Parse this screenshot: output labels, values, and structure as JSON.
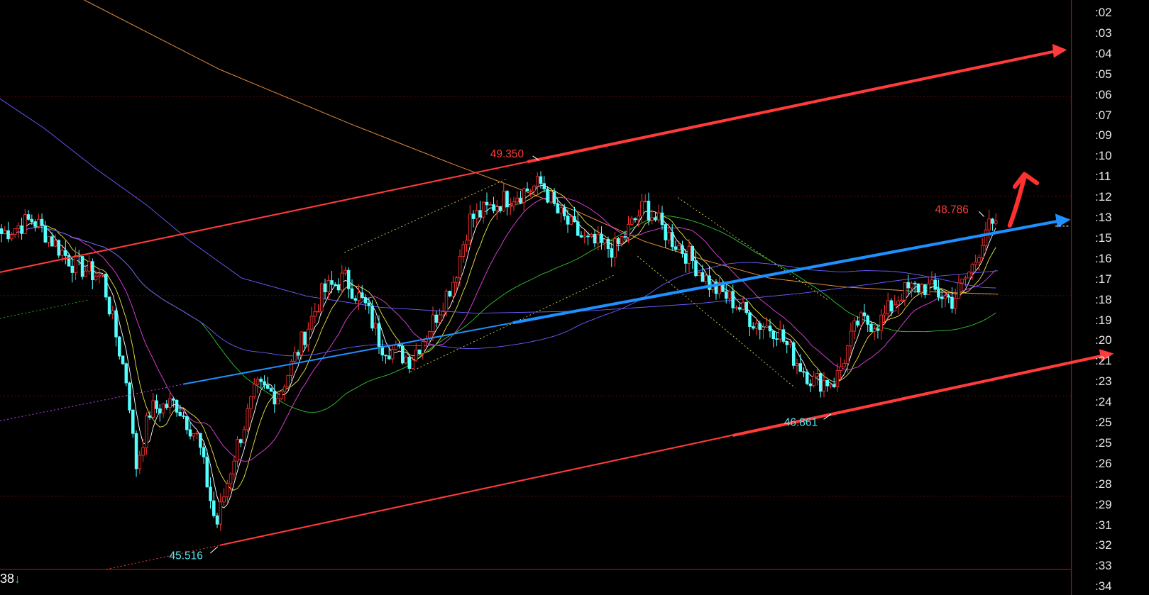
{
  "chart_data": {
    "type": "candlestick",
    "title": "",
    "xlabel": "",
    "ylabel": "",
    "ylim": [
      45.2,
      50.9
    ],
    "grid": true,
    "close_path": [
      [
        0,
        48.65
      ],
      [
        45,
        48.8
      ],
      [
        100,
        48.35
      ],
      [
        140,
        48.21
      ],
      [
        175,
        47.1
      ],
      [
        185,
        46.29
      ],
      [
        205,
        46.88
      ],
      [
        240,
        46.95
      ],
      [
        270,
        46.59
      ],
      [
        295,
        45.7
      ],
      [
        320,
        46.44
      ],
      [
        350,
        47.1
      ],
      [
        380,
        47.03
      ],
      [
        410,
        47.54
      ],
      [
        440,
        48.06
      ],
      [
        470,
        48.21
      ],
      [
        500,
        47.91
      ],
      [
        520,
        47.54
      ],
      [
        560,
        47.39
      ],
      [
        590,
        47.76
      ],
      [
        620,
        48.21
      ],
      [
        640,
        48.79
      ],
      [
        690,
        49.01
      ],
      [
        740,
        49.16
      ],
      [
        760,
        48.87
      ],
      [
        800,
        48.57
      ],
      [
        840,
        48.5
      ],
      [
        880,
        48.94
      ],
      [
        910,
        48.65
      ],
      [
        940,
        48.43
      ],
      [
        970,
        48.13
      ],
      [
        1000,
        47.98
      ],
      [
        1030,
        47.76
      ],
      [
        1060,
        47.69
      ],
      [
        1085,
        47.39
      ],
      [
        1110,
        47.17
      ],
      [
        1140,
        47.17
      ],
      [
        1170,
        47.76
      ],
      [
        1200,
        47.76
      ],
      [
        1230,
        48.06
      ],
      [
        1260,
        48.13
      ],
      [
        1300,
        47.98
      ],
      [
        1330,
        48.36
      ],
      [
        1345,
        48.72
      ],
      [
        1360,
        48.69
      ]
    ],
    "annotations": [
      {
        "text": "49.350",
        "kind": "high",
        "color": "#ff3b3b"
      },
      {
        "text": "48.786",
        "kind": "recent-high",
        "color": "#ff3b3b"
      },
      {
        "text": "46.861",
        "kind": "low",
        "color": "#54e8f0"
      },
      {
        "text": "45.516",
        "kind": "low",
        "color": "#54e8f0"
      }
    ],
    "y_tick_labels": [
      ":02",
      ":03",
      ":04",
      ":05",
      ":06",
      ":07",
      ":09",
      ":10",
      ":11",
      ":12",
      ":13",
      ":15",
      ":16",
      ":17",
      ":18",
      ":19",
      ":20",
      ":21",
      ":23",
      ":24",
      ":25",
      ":25",
      ":26",
      ":28",
      ":29",
      ":31",
      ":32",
      ":33",
      ":34"
    ],
    "colors": {
      "up": "#ff3232",
      "down": "#54ffff",
      "channel": "#ff3b3b",
      "midline": "#1e90ff",
      "ma5": "#ffffff",
      "ma10": "#e8e040",
      "ma20": "#e040e0",
      "ma60": "#30c030",
      "ma_long": "#6a5cff",
      "ma_orange": "#e08a3a"
    }
  },
  "status": {
    "value": "38",
    "arrow": "↓"
  }
}
